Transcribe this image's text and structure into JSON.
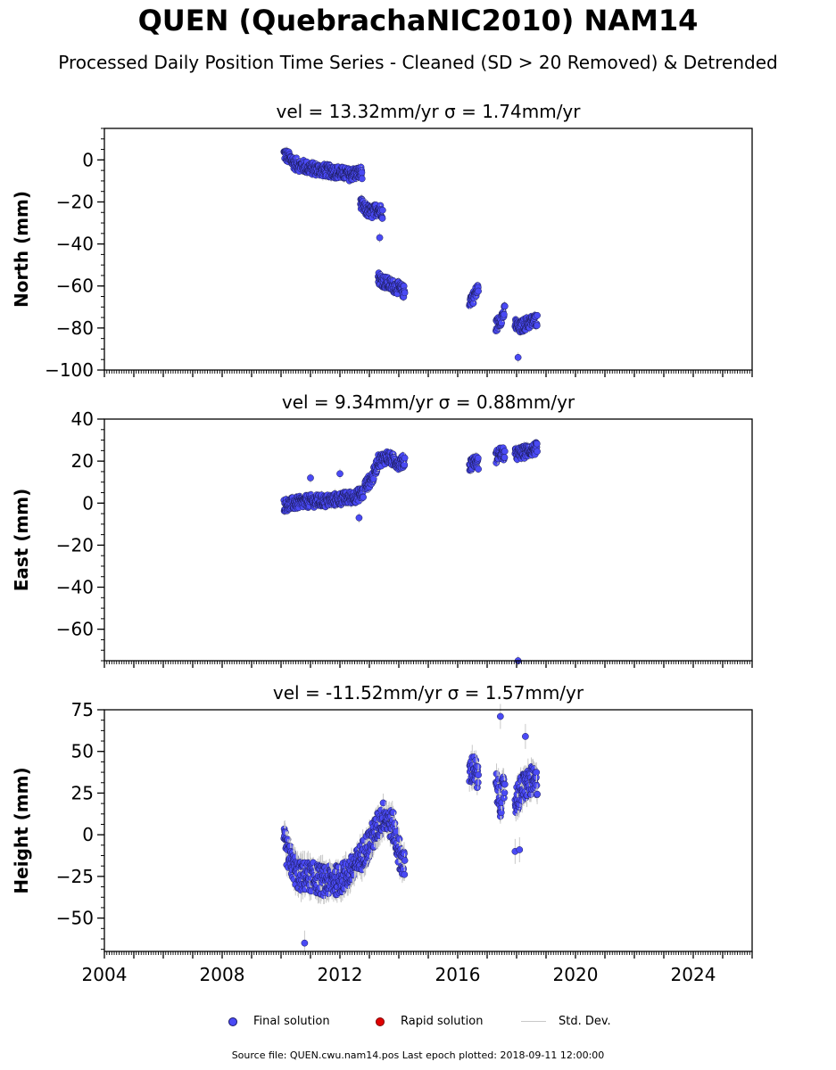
{
  "title": "QUEN (QuebrachaNIC2010) NAM14",
  "subtitle": "Processed Daily Position Time Series - Cleaned (SD > 20 Removed) & Detrended",
  "legend": {
    "final": "Final solution",
    "rapid": "Rapid solution",
    "std": "Std. Dev."
  },
  "footer": "Source file: QUEN.cwu.nam14.pos  Last epoch plotted: 2018-09-11 12:00:00",
  "colors": {
    "final": "#4a4af5",
    "rapid": "#e00000",
    "stddev": "#c8c8c8"
  },
  "chart_data": [
    {
      "type": "scatter",
      "component": "north",
      "title": "vel = 13.32mm/yr   σ = 1.74mm/yr",
      "xlabel": "",
      "ylabel": "North (mm)",
      "xlim": [
        2004,
        2026
      ],
      "ylim": [
        -100,
        15
      ],
      "yticks": [
        0,
        -20,
        -40,
        -60,
        -80,
        -100
      ],
      "xticks": [
        2004,
        2008,
        2012,
        2016,
        2020,
        2024
      ],
      "series": [
        {
          "name": "Final solution",
          "segments": [
            {
              "x": [
                2010.1,
                2010.5,
                2011.0,
                2011.5,
                2012.0,
                2012.3,
                2012.75
              ],
              "y": [
                3,
                -2,
                -4,
                -5,
                -6,
                -7,
                -6
              ]
            },
            {
              "x": [
                2012.7,
                2012.9,
                2013.1,
                2013.3,
                2013.45
              ],
              "y": [
                -21,
                -24,
                -25,
                -23,
                -25
              ]
            },
            {
              "x": [
                2013.3,
                2013.5,
                2013.8,
                2014.0,
                2014.2
              ],
              "y": [
                -56,
                -58,
                -60,
                -61,
                -63
              ]
            },
            {
              "x": [
                2016.4,
                2016.55,
                2016.7
              ],
              "y": [
                -67,
                -65,
                -61
              ]
            },
            {
              "x": [
                2017.3,
                2017.45,
                2017.6
              ],
              "y": [
                -79,
                -76,
                -72
              ]
            },
            {
              "x": [
                2017.95,
                2018.1,
                2018.3,
                2018.5,
                2018.7
              ],
              "y": [
                -78,
                -80,
                -78,
                -77,
                -76
              ]
            }
          ],
          "outliers": {
            "x": [
              2013.35,
              2018.05
            ],
            "y": [
              -37,
              -94
            ]
          }
        }
      ]
    },
    {
      "type": "scatter",
      "component": "east",
      "title": "vel = 9.34mm/yr   σ = 0.88mm/yr",
      "xlabel": "",
      "ylabel": "East (mm)",
      "xlim": [
        2004,
        2026
      ],
      "ylim": [
        -75,
        40
      ],
      "yticks": [
        40,
        20,
        0,
        -20,
        -40,
        -60
      ],
      "xticks": [
        2004,
        2008,
        2012,
        2016,
        2020,
        2024
      ],
      "series": [
        {
          "name": "Final solution",
          "segments": [
            {
              "x": [
                2010.1,
                2010.5,
                2011.0,
                2011.5,
                2012.0,
                2012.5,
                2012.8
              ],
              "y": [
                -1,
                0,
                1,
                1,
                2,
                3,
                5
              ]
            },
            {
              "x": [
                2012.85,
                2013.1,
                2013.3,
                2013.6,
                2014.0,
                2014.2
              ],
              "y": [
                8,
                12,
                20,
                22,
                19,
                20
              ]
            },
            {
              "x": [
                2016.4,
                2016.55,
                2016.7
              ],
              "y": [
                18,
                20,
                19
              ]
            },
            {
              "x": [
                2017.3,
                2017.45,
                2017.6
              ],
              "y": [
                22,
                24,
                23
              ]
            },
            {
              "x": [
                2017.95,
                2018.2,
                2018.4,
                2018.7
              ],
              "y": [
                23,
                24,
                25,
                26
              ]
            }
          ],
          "outliers": {
            "x": [
              2011.0,
              2012.0,
              2012.65,
              2018.05
            ],
            "y": [
              12,
              14,
              -7,
              -75
            ]
          }
        }
      ]
    },
    {
      "type": "scatter",
      "component": "height",
      "title": "vel = -11.52mm/yr   σ = 1.57mm/yr",
      "xlabel": "",
      "ylabel": "Height (mm)",
      "xlim": [
        2004,
        2026
      ],
      "ylim": [
        -70,
        75
      ],
      "yticks": [
        75,
        50,
        25,
        0,
        -25,
        -50
      ],
      "xticks": [
        2004,
        2008,
        2012,
        2016,
        2020,
        2024
      ],
      "series": [
        {
          "name": "Final solution",
          "segments": [
            {
              "x": [
                2010.1,
                2010.3,
                2010.6,
                2011.0,
                2011.5,
                2012.0,
                2012.5,
                2013.0,
                2013.5,
                2013.8,
                2014.0,
                2014.2
              ],
              "y": [
                -5,
                -15,
                -25,
                -25,
                -28,
                -27,
                -20,
                -5,
                12,
                5,
                -10,
                -20
              ]
            },
            {
              "x": [
                2016.4,
                2016.55,
                2016.7
              ],
              "y": [
                38,
                40,
                32
              ]
            },
            {
              "x": [
                2017.3,
                2017.45,
                2017.6
              ],
              "y": [
                30,
                20,
                30
              ]
            },
            {
              "x": [
                2017.95,
                2018.1,
                2018.3,
                2018.5,
                2018.7
              ],
              "y": [
                20,
                25,
                30,
                32,
                30
              ]
            }
          ],
          "outliers": {
            "x": [
              2010.8,
              2017.45,
              2017.95,
              2018.1,
              2018.3
            ],
            "y": [
              -65,
              71,
              -10,
              -9,
              59
            ]
          }
        }
      ]
    }
  ]
}
